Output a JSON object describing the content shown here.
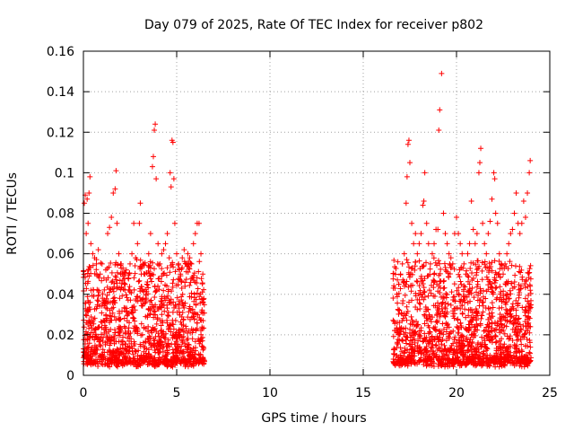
{
  "chart_data": {
    "type": "scatter",
    "title": "Day 079 of 2025, Rate Of TEC Index for receiver p802",
    "xlabel": "GPS time / hours",
    "ylabel": "ROTI / TECUs",
    "xlim": [
      0,
      25
    ],
    "ylim": [
      0,
      0.16
    ],
    "x_ticks": [
      0,
      5,
      10,
      15,
      20,
      25
    ],
    "x_tick_labels": [
      "0",
      "5",
      "10",
      "15",
      "20",
      "25"
    ],
    "y_ticks": [
      0,
      0.02,
      0.04,
      0.06,
      0.08,
      0.1,
      0.12,
      0.14,
      0.16
    ],
    "y_tick_labels": [
      "0",
      "0.02",
      "0.04",
      "0.06",
      "0.08",
      "0.1",
      "0.12",
      "0.14",
      "0.16"
    ],
    "grid": true,
    "marker": "+",
    "marker_color": "#ff0000",
    "series": [
      {
        "name": "ROTI",
        "points": [
          [
            0.05,
            0.085
          ],
          [
            0.1,
            0.089
          ],
          [
            0.2,
            0.087
          ],
          [
            0.3,
            0.09
          ],
          [
            0.35,
            0.098
          ],
          [
            0.25,
            0.075
          ],
          [
            0.15,
            0.07
          ],
          [
            0.4,
            0.065
          ],
          [
            0.5,
            0.06
          ],
          [
            0.6,
            0.058
          ],
          [
            0.7,
            0.055
          ],
          [
            0.8,
            0.062
          ],
          [
            0.9,
            0.05
          ],
          [
            1.0,
            0.055
          ],
          [
            1.1,
            0.048
          ],
          [
            1.2,
            0.052
          ],
          [
            1.3,
            0.07
          ],
          [
            1.4,
            0.073
          ],
          [
            1.5,
            0.078
          ],
          [
            1.6,
            0.09
          ],
          [
            1.7,
            0.092
          ],
          [
            1.75,
            0.101
          ],
          [
            1.8,
            0.075
          ],
          [
            1.9,
            0.06
          ],
          [
            2.0,
            0.055
          ],
          [
            2.1,
            0.05
          ],
          [
            2.2,
            0.045
          ],
          [
            2.3,
            0.052
          ],
          [
            2.4,
            0.048
          ],
          [
            2.5,
            0.055
          ],
          [
            2.6,
            0.06
          ],
          [
            2.7,
            0.075
          ],
          [
            2.8,
            0.058
          ],
          [
            2.9,
            0.065
          ],
          [
            3.0,
            0.075
          ],
          [
            3.05,
            0.085
          ],
          [
            3.2,
            0.055
          ],
          [
            3.3,
            0.05
          ],
          [
            3.4,
            0.045
          ],
          [
            3.5,
            0.06
          ],
          [
            3.6,
            0.07
          ],
          [
            3.7,
            0.103
          ],
          [
            3.75,
            0.108
          ],
          [
            3.8,
            0.121
          ],
          [
            3.85,
            0.124
          ],
          [
            3.9,
            0.097
          ],
          [
            4.0,
            0.065
          ],
          [
            4.1,
            0.055
          ],
          [
            4.2,
            0.06
          ],
          [
            4.3,
            0.062
          ],
          [
            4.4,
            0.065
          ],
          [
            4.5,
            0.07
          ],
          [
            4.6,
            0.058
          ],
          [
            4.65,
            0.1
          ],
          [
            4.7,
            0.093
          ],
          [
            4.75,
            0.116
          ],
          [
            4.8,
            0.115
          ],
          [
            4.85,
            0.097
          ],
          [
            4.9,
            0.075
          ],
          [
            5.0,
            0.06
          ],
          [
            5.1,
            0.055
          ],
          [
            5.2,
            0.05
          ],
          [
            5.3,
            0.058
          ],
          [
            5.4,
            0.062
          ],
          [
            5.5,
            0.055
          ],
          [
            5.6,
            0.06
          ],
          [
            5.7,
            0.058
          ],
          [
            5.8,
            0.055
          ],
          [
            5.9,
            0.065
          ],
          [
            6.0,
            0.07
          ],
          [
            6.1,
            0.075
          ],
          [
            6.2,
            0.075
          ],
          [
            6.3,
            0.06
          ],
          [
            6.4,
            0.05
          ],
          [
            16.7,
            0.043
          ],
          [
            16.8,
            0.04
          ],
          [
            16.9,
            0.045
          ],
          [
            17.0,
            0.05
          ],
          [
            17.1,
            0.055
          ],
          [
            17.2,
            0.06
          ],
          [
            17.3,
            0.085
          ],
          [
            17.35,
            0.098
          ],
          [
            17.4,
            0.114
          ],
          [
            17.45,
            0.116
          ],
          [
            17.5,
            0.105
          ],
          [
            17.6,
            0.075
          ],
          [
            17.7,
            0.065
          ],
          [
            17.8,
            0.07
          ],
          [
            17.9,
            0.06
          ],
          [
            18.0,
            0.065
          ],
          [
            18.1,
            0.07
          ],
          [
            18.2,
            0.084
          ],
          [
            18.25,
            0.086
          ],
          [
            18.3,
            0.1
          ],
          [
            18.4,
            0.075
          ],
          [
            18.5,
            0.065
          ],
          [
            18.6,
            0.055
          ],
          [
            18.7,
            0.06
          ],
          [
            18.8,
            0.065
          ],
          [
            18.9,
            0.072
          ],
          [
            19.0,
            0.072
          ],
          [
            19.05,
            0.121
          ],
          [
            19.1,
            0.131
          ],
          [
            19.2,
            0.149
          ],
          [
            19.3,
            0.08
          ],
          [
            19.4,
            0.07
          ],
          [
            19.5,
            0.065
          ],
          [
            19.6,
            0.06
          ],
          [
            19.7,
            0.058
          ],
          [
            19.8,
            0.055
          ],
          [
            19.9,
            0.07
          ],
          [
            20.0,
            0.078
          ],
          [
            20.1,
            0.07
          ],
          [
            20.2,
            0.065
          ],
          [
            20.3,
            0.06
          ],
          [
            20.4,
            0.055
          ],
          [
            20.5,
            0.05
          ],
          [
            20.6,
            0.06
          ],
          [
            20.7,
            0.065
          ],
          [
            20.8,
            0.086
          ],
          [
            20.9,
            0.072
          ],
          [
            21.0,
            0.065
          ],
          [
            21.1,
            0.07
          ],
          [
            21.2,
            0.1
          ],
          [
            21.25,
            0.105
          ],
          [
            21.3,
            0.112
          ],
          [
            21.4,
            0.075
          ],
          [
            21.5,
            0.065
          ],
          [
            21.6,
            0.06
          ],
          [
            21.7,
            0.07
          ],
          [
            21.8,
            0.076
          ],
          [
            21.9,
            0.087
          ],
          [
            22.0,
            0.1
          ],
          [
            22.05,
            0.097
          ],
          [
            22.1,
            0.08
          ],
          [
            22.2,
            0.075
          ],
          [
            22.3,
            0.06
          ],
          [
            22.4,
            0.055
          ],
          [
            22.5,
            0.05
          ],
          [
            22.6,
            0.055
          ],
          [
            22.7,
            0.06
          ],
          [
            22.8,
            0.065
          ],
          [
            22.9,
            0.07
          ],
          [
            23.0,
            0.072
          ],
          [
            23.1,
            0.08
          ],
          [
            23.2,
            0.09
          ],
          [
            23.3,
            0.075
          ],
          [
            23.4,
            0.07
          ],
          [
            23.5,
            0.075
          ],
          [
            23.6,
            0.086
          ],
          [
            23.7,
            0.078
          ],
          [
            23.8,
            0.09
          ],
          [
            23.9,
            0.1
          ],
          [
            23.95,
            0.106
          ]
        ]
      }
    ]
  }
}
